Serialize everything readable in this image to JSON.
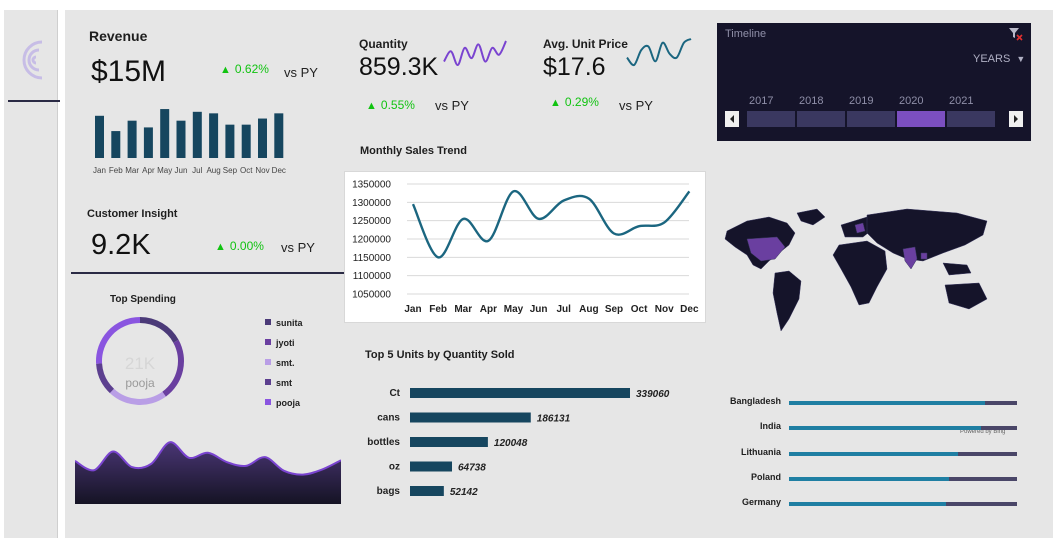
{
  "revenue": {
    "title": "Revenue",
    "value": "$15M",
    "delta": "0.62%",
    "vs": "vs PY",
    "months": [
      "Jan",
      "Feb",
      "Mar",
      "Apr",
      "May",
      "Jun",
      "Jul",
      "Aug",
      "Sep",
      "Oct",
      "Nov",
      "Dec"
    ]
  },
  "quantity": {
    "title": "Quantity",
    "value": "859.3K",
    "delta": "0.55%",
    "vs": "vs PY"
  },
  "avg_price": {
    "title": "Avg. Unit Price",
    "value": "$17.6",
    "delta": "0.29%",
    "vs": "vs PY"
  },
  "customer": {
    "title": "Customer Insight",
    "value": "9.2K",
    "delta": "0.00%",
    "vs": "vs PY"
  },
  "timeline": {
    "title": "Timeline",
    "period": "YEARS",
    "years": [
      "2017",
      "2018",
      "2019",
      "2020",
      "2021"
    ],
    "selected": "2020",
    "colors": {
      "track": "#3a3860",
      "selected": "#7b4fc0"
    }
  },
  "top_spending": {
    "title": "Top Spending",
    "center_value": "21K",
    "center_label": "pooja",
    "legend": [
      {
        "name": "sunita",
        "color": "#4b3a78"
      },
      {
        "name": "jyoti",
        "color": "#6a3fa0"
      },
      {
        "name": "smt.",
        "color": "#b99ee6"
      },
      {
        "name": "smt",
        "color": "#5c3f8f"
      },
      {
        "name": "pooja",
        "color": "#8a55e0"
      }
    ]
  },
  "top_units": {
    "title": "Top 5 Units by Quantity Sold"
  },
  "map": {
    "credit": "Powered by Bing",
    "highlight_color": "#6a3fa0",
    "land_color": "#15142a"
  },
  "countries": {
    "items": [
      {
        "name": "Bangladesh",
        "share": 0.86
      },
      {
        "name": "India",
        "share": 0.84
      },
      {
        "name": "Lithuania",
        "share": 0.74
      },
      {
        "name": "Poland",
        "share": 0.7
      },
      {
        "name": "Germany",
        "share": 0.69
      }
    ],
    "colors": {
      "fill": "#1f7fa3",
      "track": "#4a4668"
    }
  },
  "chart_data": [
    {
      "id": "revenue_mini",
      "type": "bar",
      "categories": [
        "Jan",
        "Feb",
        "Mar",
        "Apr",
        "May",
        "Jun",
        "Jul",
        "Aug",
        "Sep",
        "Oct",
        "Nov",
        "Dec"
      ],
      "values": [
        1.38,
        0.88,
        1.22,
        1.0,
        1.6,
        1.22,
        1.51,
        1.46,
        1.09,
        1.09,
        1.29,
        1.46
      ],
      "color": "#16465f"
    },
    {
      "id": "quantity_spark",
      "type": "line",
      "values": [
        2,
        5,
        1,
        6,
        3,
        7,
        2,
        6,
        4,
        8
      ],
      "color": "#7a44d0"
    },
    {
      "id": "price_spark",
      "type": "line",
      "values": [
        4,
        2,
        6,
        7,
        3,
        8,
        5,
        4,
        8,
        9
      ],
      "color": "#1b6680"
    },
    {
      "id": "monthly_sales_trend",
      "type": "line",
      "title": "Monthly Sales Trend",
      "categories": [
        "Jan",
        "Feb",
        "Mar",
        "Apr",
        "May",
        "Jun",
        "Jul",
        "Aug",
        "Sep",
        "Oct",
        "Nov",
        "Dec"
      ],
      "values": [
        1295000,
        1150000,
        1255000,
        1195000,
        1330000,
        1255000,
        1305000,
        1310000,
        1215000,
        1235000,
        1245000,
        1330000
      ],
      "ylim": [
        1050000,
        1350000
      ],
      "yticks": [
        "1350000",
        "1300000",
        "1250000",
        "1200000",
        "1150000",
        "1100000",
        "1050000"
      ],
      "grid": true,
      "color": "#1b6680"
    },
    {
      "id": "top_units",
      "type": "bar",
      "orientation": "horizontal",
      "title": "Top 5 Units by Quantity Sold",
      "categories": [
        "Ct",
        "cans",
        "bottles",
        "oz",
        "bags"
      ],
      "values": [
        339060,
        186131,
        120048,
        64738,
        52142
      ],
      "labels": [
        "339060",
        "186131",
        "120048",
        "64738",
        "52142"
      ],
      "color": "#16465f"
    },
    {
      "id": "top_spending_donut",
      "type": "pie",
      "title": "Top Spending",
      "categories": [
        "sunita",
        "jyoti",
        "smt.",
        "smt",
        "pooja"
      ],
      "values": [
        17,
        23,
        22,
        12,
        26
      ]
    },
    {
      "id": "area_trend",
      "type": "area",
      "values": [
        5,
        3.5,
        6.5,
        4,
        4.5,
        8,
        5.5,
        6.3,
        4.8,
        4.2,
        5.6,
        3.4,
        2.8,
        3.6,
        5.1
      ],
      "color": "#3b2a62",
      "line_color": "#7a44d0"
    }
  ]
}
